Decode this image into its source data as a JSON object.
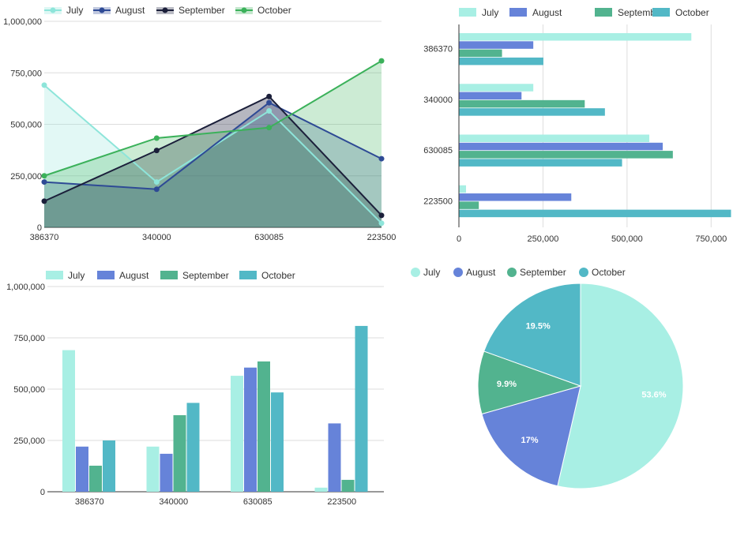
{
  "colors": {
    "july": "#a8efe4",
    "august": "#6683d9",
    "september": "#52b38f",
    "october": "#52b8c6",
    "line_july": "#8ee5da",
    "line_august": "#2e4a95",
    "line_september": "#1b1f3a",
    "line_october": "#3bb15a"
  },
  "chart_data": [
    {
      "type": "area",
      "categories": [
        "386370",
        "340000",
        "630085",
        "223500"
      ],
      "series": [
        {
          "name": "July",
          "values": [
            690000,
            220000,
            565000,
            20000
          ]
        },
        {
          "name": "August",
          "values": [
            220000,
            185000,
            605000,
            333000
          ]
        },
        {
          "name": "September",
          "values": [
            127000,
            373000,
            635000,
            58000
          ]
        },
        {
          "name": "October",
          "values": [
            250000,
            433000,
            484000,
            808000
          ]
        }
      ],
      "ylim": [
        0,
        1000000
      ],
      "y_ticks": [
        "0",
        "250,000",
        "500,000",
        "750,000",
        "1,000,000"
      ],
      "legend_position": "top-left",
      "grid": true
    },
    {
      "type": "bar",
      "orientation": "horizontal",
      "categories": [
        "386370",
        "340000",
        "630085",
        "223500"
      ],
      "series": [
        {
          "name": "July",
          "values": [
            690000,
            220000,
            565000,
            20000
          ]
        },
        {
          "name": "August",
          "values": [
            220000,
            185000,
            605000,
            333000
          ]
        },
        {
          "name": "September",
          "values": [
            127000,
            373000,
            635000,
            58000
          ]
        },
        {
          "name": "October",
          "values": [
            250000,
            433000,
            484000,
            808000
          ]
        }
      ],
      "xlim": [
        0,
        808000
      ],
      "x_ticks": [
        "0",
        "250,000",
        "500,000",
        "750,000"
      ],
      "legend_position": "top-left",
      "grid": true
    },
    {
      "type": "bar",
      "orientation": "vertical",
      "categories": [
        "386370",
        "340000",
        "630085",
        "223500"
      ],
      "series": [
        {
          "name": "July",
          "values": [
            690000,
            220000,
            565000,
            20000
          ]
        },
        {
          "name": "August",
          "values": [
            220000,
            185000,
            605000,
            333000
          ]
        },
        {
          "name": "September",
          "values": [
            127000,
            373000,
            635000,
            58000
          ]
        },
        {
          "name": "October",
          "values": [
            250000,
            433000,
            484000,
            808000
          ]
        }
      ],
      "ylim": [
        0,
        1000000
      ],
      "y_ticks": [
        "0",
        "250,000",
        "500,000",
        "750,000",
        "1,000,000"
      ],
      "legend_position": "top-left",
      "grid": true
    },
    {
      "type": "pie",
      "labels": [
        "July",
        "August",
        "September",
        "October"
      ],
      "values": [
        53.6,
        17,
        9.9,
        19.5
      ],
      "value_labels": [
        "53.6%",
        "17%",
        "9.9%",
        "19.5%"
      ],
      "legend_position": "top-left"
    }
  ]
}
